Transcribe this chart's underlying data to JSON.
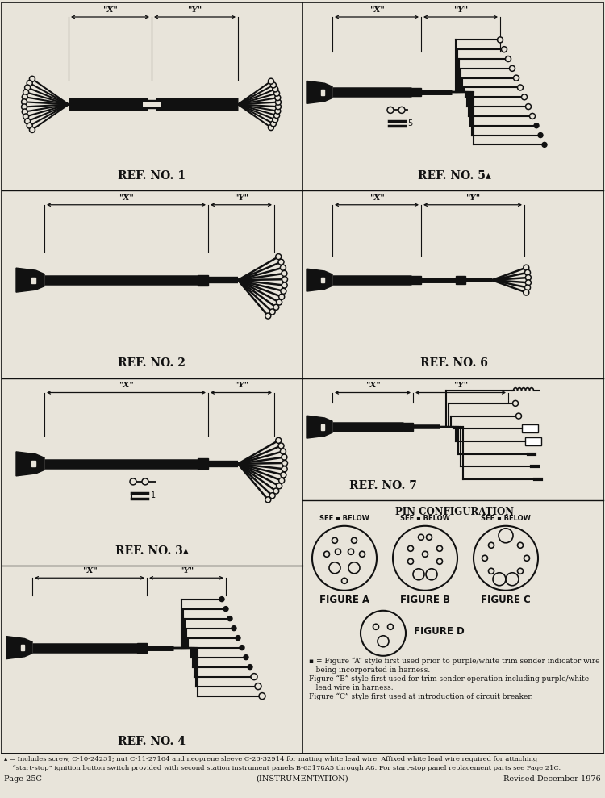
{
  "bg_color": "#e8e4da",
  "line_color": "#111111",
  "footer_left": "Page 25C",
  "footer_center": "(INSTRUMENTATION)",
  "footer_right": "Revised December 1976",
  "ref_labels": [
    "REF. NO. 1",
    "REF. NO. 2",
    "REF. NO. 3▴",
    "REF. NO. 4",
    "REF. NO. 5▴",
    "REF. NO. 6",
    "REF. NO. 7"
  ],
  "pin_config_title": "PIN CONFIGURATION",
  "see_below": "SEE ▪ BELOW",
  "figures": [
    "FIGURE A",
    "FIGURE B",
    "FIGURE C",
    "FIGURE D"
  ]
}
